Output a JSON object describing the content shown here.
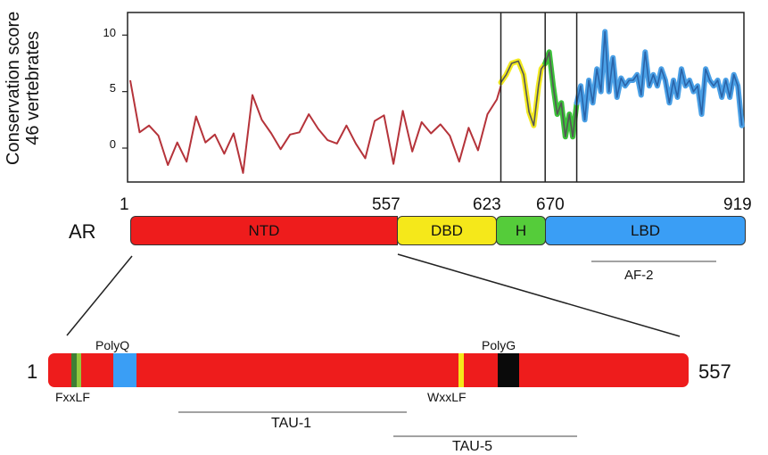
{
  "chart_data": {
    "type": "line",
    "ylabel_line1": "Conservation score",
    "ylabel_line2": "46 vertebrates",
    "yticks": [
      "10",
      "5",
      "0"
    ],
    "ylim": [
      -3,
      12
    ],
    "xlim": [
      1,
      919
    ],
    "boundaries": [
      557,
      623,
      670
    ],
    "series": [
      {
        "color": "#b5333a",
        "points": [
          [
            5,
            6
          ],
          [
            19,
            1.4
          ],
          [
            33,
            2
          ],
          [
            47,
            1.1
          ],
          [
            61,
            -1.5
          ],
          [
            75,
            0.5
          ],
          [
            89,
            -1.2
          ],
          [
            103,
            2.8
          ],
          [
            117,
            0.5
          ],
          [
            131,
            1.2
          ],
          [
            145,
            -0.5
          ],
          [
            159,
            1.3
          ],
          [
            173,
            -2.2
          ],
          [
            187,
            4.7
          ],
          [
            201,
            2.5
          ],
          [
            215,
            1.3
          ],
          [
            229,
            -0.1
          ],
          [
            243,
            1.2
          ],
          [
            257,
            1.4
          ],
          [
            271,
            3
          ],
          [
            285,
            1.7
          ],
          [
            299,
            0.7
          ],
          [
            313,
            0.4
          ],
          [
            327,
            2
          ],
          [
            341,
            0.4
          ],
          [
            355,
            -0.9
          ],
          [
            369,
            2.4
          ],
          [
            383,
            2.9
          ],
          [
            397,
            -1.4
          ],
          [
            411,
            3.3
          ],
          [
            425,
            -0.3
          ],
          [
            439,
            2.3
          ],
          [
            453,
            1.3
          ],
          [
            467,
            2.1
          ],
          [
            481,
            1.1
          ],
          [
            495,
            -1.2
          ],
          [
            509,
            1.8
          ],
          [
            523,
            -0.2
          ],
          [
            537,
            3
          ],
          [
            551,
            4.3
          ],
          [
            557,
            5.5
          ]
        ]
      },
      {
        "color": "#b5333a",
        "points": [
          [
            557,
            5.8
          ],
          [
            565,
            6.5
          ],
          [
            573,
            7.5
          ],
          [
            583,
            7.7
          ],
          [
            591,
            6.5
          ],
          [
            599,
            3.2
          ],
          [
            606,
            2
          ],
          [
            613,
            5.5
          ],
          [
            617,
            7
          ],
          [
            623,
            7.5
          ]
        ]
      },
      {
        "color": "#b5333a",
        "points": [
          [
            623,
            7.5
          ],
          [
            629,
            8.5
          ],
          [
            635,
            5.5
          ],
          [
            641,
            3
          ],
          [
            647,
            4
          ],
          [
            653,
            1
          ],
          [
            659,
            3
          ],
          [
            664,
            1
          ],
          [
            670,
            4
          ]
        ]
      },
      {
        "color": "#2a63a8",
        "points": [
          [
            670,
            4
          ],
          [
            676,
            5.5
          ],
          [
            682,
            2.5
          ],
          [
            688,
            6
          ],
          [
            694,
            4
          ],
          [
            700,
            7
          ],
          [
            706,
            5
          ],
          [
            712,
            10.3
          ],
          [
            718,
            5
          ],
          [
            724,
            8
          ],
          [
            730,
            4.5
          ],
          [
            736,
            6.2
          ],
          [
            742,
            5.5
          ],
          [
            748,
            6
          ],
          [
            754,
            6
          ],
          [
            760,
            6.5
          ],
          [
            766,
            4.7
          ],
          [
            772,
            8.5
          ],
          [
            778,
            5.5
          ],
          [
            784,
            6.5
          ],
          [
            790,
            5.5
          ],
          [
            796,
            7
          ],
          [
            802,
            6
          ],
          [
            808,
            4
          ],
          [
            814,
            6
          ],
          [
            820,
            4.5
          ],
          [
            826,
            7
          ],
          [
            832,
            5.5
          ],
          [
            838,
            6
          ],
          [
            844,
            5
          ],
          [
            850,
            5.5
          ],
          [
            856,
            3
          ],
          [
            862,
            7
          ],
          [
            868,
            6
          ],
          [
            874,
            5.5
          ],
          [
            880,
            6
          ],
          [
            886,
            4.5
          ],
          [
            892,
            6
          ],
          [
            898,
            4.5
          ],
          [
            904,
            6.5
          ],
          [
            910,
            5.5
          ],
          [
            916,
            2
          ]
        ]
      }
    ]
  },
  "positions": {
    "p1": "1",
    "p557": "557",
    "p623": "623",
    "p670": "670",
    "p919": "919"
  },
  "protein": {
    "name": "AR",
    "domains": [
      {
        "label": "NTD",
        "color": "#ee1c1c"
      },
      {
        "label": "DBD",
        "color": "#f5e81a"
      },
      {
        "label": "H",
        "color": "#55cc3a"
      },
      {
        "label": "LBD",
        "color": "#3a9ef5"
      }
    ],
    "af2_label": "AF-2"
  },
  "ntd_detail": {
    "start": "1",
    "end": "557",
    "polyq": "PolyQ",
    "polyg": "PolyG",
    "fxxlf": "FxxLF",
    "wxxlf": "WxxLF",
    "tau1": "TAU-1",
    "tau5": "TAU-5"
  }
}
